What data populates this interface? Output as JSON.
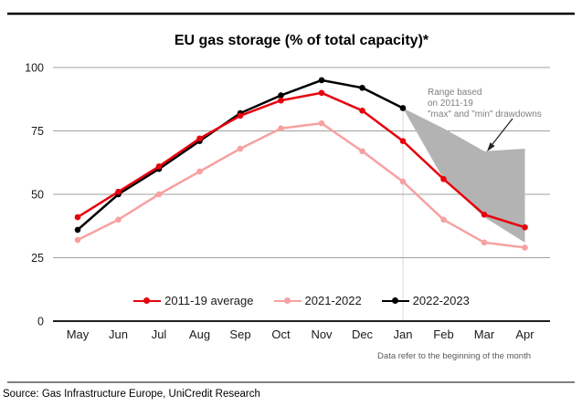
{
  "page": {
    "title": "EU gas storage (% of total capacity)*",
    "source": "Source: Gas Infrastructure Europe, UniCredit Research",
    "footnote": "Data refer to the beginning of the month"
  },
  "annotation": {
    "lines": [
      "Range based",
      "on 2011-19",
      "\"max\" and \"min\" drawdowns"
    ]
  },
  "chart_data": {
    "type": "line",
    "title": "EU gas storage (% of total capacity)*",
    "xlabel": "",
    "ylabel": "",
    "ylim": [
      0,
      100
    ],
    "y_ticks": [
      0,
      25,
      50,
      75,
      100
    ],
    "grid": true,
    "legend_position": "bottom-inside",
    "categories": [
      "May",
      "Jun",
      "Jul",
      "Aug",
      "Sep",
      "Oct",
      "Nov",
      "Dec",
      "Jan",
      "Feb",
      "Mar",
      "Apr"
    ],
    "series": [
      {
        "name": "2011-19 average",
        "color": "#e8000d",
        "values": [
          41,
          51,
          61,
          72,
          81,
          87,
          90,
          83,
          71,
          56,
          42,
          37
        ]
      },
      {
        "name": "2021-2022",
        "color": "#f7a1a1",
        "values": [
          32,
          40,
          50,
          59,
          68,
          76,
          78,
          67,
          55,
          40,
          31,
          29
        ]
      },
      {
        "name": "2022-2023",
        "color": "#000000",
        "values": [
          36,
          50,
          60,
          71,
          82,
          89,
          95,
          92,
          84,
          null,
          null,
          null
        ]
      }
    ],
    "range_band": {
      "label": "Range based on 2011-19 \"max\" and \"min\" drawdowns",
      "color": "#b3b3b3",
      "start_category": "Jan",
      "categories": [
        "Jan",
        "Feb",
        "Mar",
        "Apr"
      ],
      "upper": [
        84,
        76,
        67,
        68
      ],
      "lower": [
        84,
        56,
        41,
        31
      ]
    },
    "dropline_category": "Jan",
    "gridline_color": "#a0a0a0",
    "axis_color": "#000000"
  }
}
